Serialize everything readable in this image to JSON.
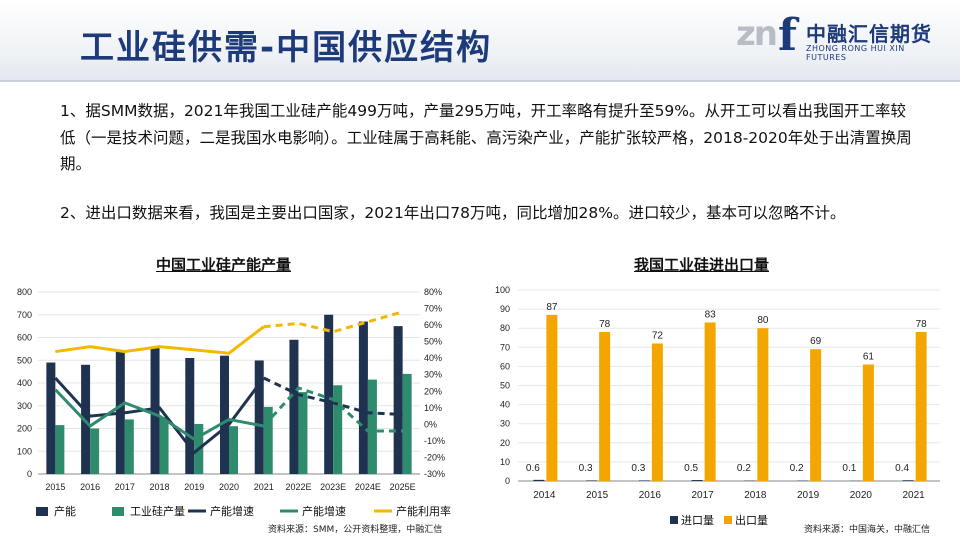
{
  "header": {
    "title": "工业硅供需-中国供应结构",
    "logo_mark": "zn",
    "logo_letter": "f",
    "logo_cn": "中融汇信期货",
    "logo_en": "ZHONG RONG HUI XIN FUTURES"
  },
  "text": {
    "p1": "1、据SMM数据，2021年我国工业硅产能499万吨，产量295万吨，开工率略有提升至59%。从开工可以看出我国开工率较低（一是技术问题，二是我国水电影响）。工业硅属于高耗能、高污染产业，产能扩张较严格，2018-2020年处于出清置换周期。",
    "p2": "2、进出口数据来看，我国是主要出口国家，2021年出口78万吨，同比增加28%。进口较少，基本可以忽略不计。"
  },
  "chart_data": [
    {
      "type": "bar",
      "title": "中国工业硅产能产量",
      "categories": [
        "2015",
        "2016",
        "2017",
        "2018",
        "2019",
        "2020",
        "2021",
        "2022E",
        "2023E",
        "2024E",
        "2025E"
      ],
      "yticks_left": [
        "0",
        "100",
        "200",
        "300",
        "400",
        "500",
        "600",
        "700",
        "800"
      ],
      "yticks_right": [
        "-30%",
        "-20%",
        "-10%",
        "0%",
        "10%",
        "20%",
        "30%",
        "40%",
        "50%",
        "60%",
        "70%",
        "80%"
      ],
      "ylim_left": [
        0,
        800
      ],
      "ylim_right": [
        -0.3,
        0.8
      ],
      "series": [
        {
          "name": "产能",
          "kind": "bar",
          "axis": "left",
          "color": "#1f3350",
          "values": [
            490,
            480,
            540,
            560,
            510,
            520,
            499,
            590,
            700,
            670,
            650
          ]
        },
        {
          "name": "工业硅产量",
          "kind": "bar",
          "axis": "left",
          "color": "#2e8b6e",
          "values": [
            215,
            200,
            240,
            250,
            220,
            210,
            295,
            360,
            390,
            415,
            440
          ]
        },
        {
          "name": "产能增速",
          "kind": "line",
          "axis": "right",
          "color": "#1f3350",
          "values": [
            0.28,
            0.05,
            0.07,
            0.1,
            -0.17,
            0.0,
            0.28,
            0.18,
            0.13,
            0.07,
            0.06
          ],
          "dashed_from_index": 6
        },
        {
          "name": "产能增速",
          "kind": "line",
          "axis": "right",
          "color": "#2e8b6e",
          "values": [
            0.21,
            -0.01,
            0.13,
            0.05,
            -0.09,
            0.03,
            -0.01,
            0.22,
            0.15,
            -0.04,
            -0.04
          ],
          "dashed_from_index": 6
        },
        {
          "name": "产能利用率",
          "kind": "line",
          "axis": "right",
          "color": "#f5b800",
          "values": [
            0.44,
            0.47,
            0.44,
            0.47,
            0.45,
            0.43,
            0.59,
            0.61,
            0.56,
            0.62,
            0.68
          ],
          "dashed_from_index": 6
        }
      ],
      "legend": [
        "产能",
        "工业硅产量",
        "产能增速",
        "产能增速",
        "产能利用率"
      ],
      "legend_position": "bottom",
      "source": "资料来源：SMM，公开资料整理，中融汇信"
    },
    {
      "type": "bar",
      "title": "我国工业硅进出口量",
      "categories": [
        "2014",
        "2015",
        "2016",
        "2017",
        "2018",
        "2019",
        "2020",
        "2021"
      ],
      "yticks": [
        "0",
        "10",
        "20",
        "30",
        "40",
        "50",
        "60",
        "70",
        "80",
        "90",
        "100"
      ],
      "ylim": [
        0,
        100
      ],
      "series": [
        {
          "name": "进口量",
          "color": "#1f3350",
          "values": [
            0.6,
            0.3,
            0.3,
            0.5,
            0.2,
            0.2,
            0.1,
            0.4
          ],
          "labels": [
            "0.6",
            "0.3",
            "0.3",
            "0.5",
            "0.2",
            "0.2",
            "0.1",
            "0.4"
          ]
        },
        {
          "name": "出口量",
          "color": "#f5a500",
          "values": [
            87,
            78,
            72,
            83,
            80,
            69,
            61,
            78
          ],
          "labels": [
            "87",
            "78",
            "72",
            "83",
            "80",
            "69",
            "61",
            "78"
          ]
        }
      ],
      "legend_position": "bottom",
      "source": "资料来源：中国海关，中融汇信"
    }
  ]
}
